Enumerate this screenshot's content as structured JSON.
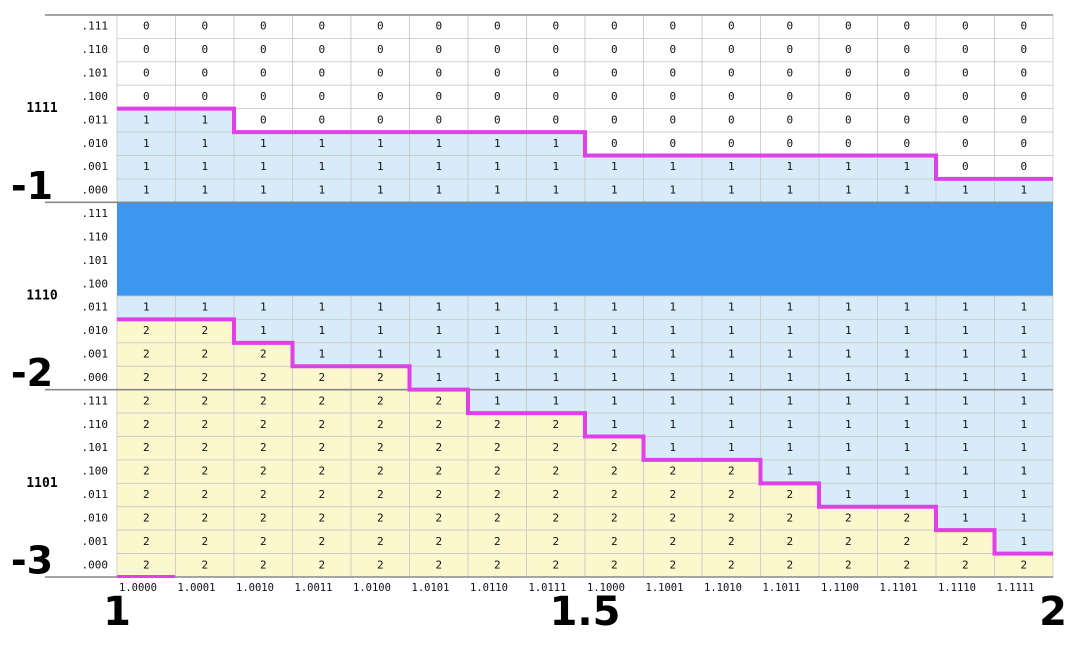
{
  "groups": [
    {
      "label": "1111",
      "quotient": "-1",
      "rows": [
        {
          "label": ".111",
          "cells": [
            "0",
            "0",
            "0",
            "0",
            "0",
            "0",
            "0",
            "0",
            "0",
            "0",
            "0",
            "0",
            "0",
            "0",
            "0",
            "0"
          ]
        },
        {
          "label": ".110",
          "cells": [
            "0",
            "0",
            "0",
            "0",
            "0",
            "0",
            "0",
            "0",
            "0",
            "0",
            "0",
            "0",
            "0",
            "0",
            "0",
            "0"
          ]
        },
        {
          "label": ".101",
          "cells": [
            "0",
            "0",
            "0",
            "0",
            "0",
            "0",
            "0",
            "0",
            "0",
            "0",
            "0",
            "0",
            "0",
            "0",
            "0",
            "0"
          ]
        },
        {
          "label": ".100",
          "cells": [
            "0",
            "0",
            "0",
            "0",
            "0",
            "0",
            "0",
            "0",
            "0",
            "0",
            "0",
            "0",
            "0",
            "0",
            "0",
            "0"
          ]
        },
        {
          "label": ".011",
          "cells": [
            "1",
            "1",
            "0",
            "0",
            "0",
            "0",
            "0",
            "0",
            "0",
            "0",
            "0",
            "0",
            "0",
            "0",
            "0",
            "0"
          ]
        },
        {
          "label": ".010",
          "cells": [
            "1",
            "1",
            "1",
            "1",
            "1",
            "1",
            "1",
            "1",
            "0",
            "0",
            "0",
            "0",
            "0",
            "0",
            "0",
            "0"
          ]
        },
        {
          "label": ".001",
          "cells": [
            "1",
            "1",
            "1",
            "1",
            "1",
            "1",
            "1",
            "1",
            "1",
            "1",
            "1",
            "1",
            "1",
            "1",
            "0",
            "0"
          ]
        },
        {
          "label": ".000",
          "cells": [
            "1",
            "1",
            "1",
            "1",
            "1",
            "1",
            "1",
            "1",
            "1",
            "1",
            "1",
            "1",
            "1",
            "1",
            "1",
            "1"
          ]
        }
      ]
    },
    {
      "label": "1110",
      "quotient": "-2",
      "rows": [
        {
          "label": ".111"
        },
        {
          "label": ".110"
        },
        {
          "label": ".101"
        },
        {
          "label": ".100"
        },
        {
          "label": ".011",
          "cells": [
            "1",
            "1",
            "1",
            "1",
            "1",
            "1",
            "1",
            "1",
            "1",
            "1",
            "1",
            "1",
            "1",
            "1",
            "1",
            "1"
          ]
        },
        {
          "label": ".010",
          "cells": [
            "2",
            "2",
            "1",
            "1",
            "1",
            "1",
            "1",
            "1",
            "1",
            "1",
            "1",
            "1",
            "1",
            "1",
            "1",
            "1"
          ]
        },
        {
          "label": ".001",
          "cells": [
            "2",
            "2",
            "2",
            "1",
            "1",
            "1",
            "1",
            "1",
            "1",
            "1",
            "1",
            "1",
            "1",
            "1",
            "1",
            "1"
          ]
        },
        {
          "label": ".000",
          "cells": [
            "2",
            "2",
            "2",
            "2",
            "2",
            "1",
            "1",
            "1",
            "1",
            "1",
            "1",
            "1",
            "1",
            "1",
            "1",
            "1"
          ]
        }
      ]
    },
    {
      "label": "1101",
      "quotient": "-3",
      "rows": [
        {
          "label": ".111",
          "cells": [
            "2",
            "2",
            "2",
            "2",
            "2",
            "2",
            "1",
            "1",
            "1",
            "1",
            "1",
            "1",
            "1",
            "1",
            "1",
            "1"
          ]
        },
        {
          "label": ".110",
          "cells": [
            "2",
            "2",
            "2",
            "2",
            "2",
            "2",
            "2",
            "2",
            "1",
            "1",
            "1",
            "1",
            "1",
            "1",
            "1",
            "1"
          ]
        },
        {
          "label": ".101",
          "cells": [
            "2",
            "2",
            "2",
            "2",
            "2",
            "2",
            "2",
            "2",
            "2",
            "1",
            "1",
            "1",
            "1",
            "1",
            "1",
            "1"
          ]
        },
        {
          "label": ".100",
          "cells": [
            "2",
            "2",
            "2",
            "2",
            "2",
            "2",
            "2",
            "2",
            "2",
            "2",
            "2",
            "1",
            "1",
            "1",
            "1",
            "1"
          ]
        },
        {
          "label": ".011",
          "cells": [
            "2",
            "2",
            "2",
            "2",
            "2",
            "2",
            "2",
            "2",
            "2",
            "2",
            "2",
            "2",
            "1",
            "1",
            "1",
            "1"
          ]
        },
        {
          "label": ".010",
          "cells": [
            "2",
            "2",
            "2",
            "2",
            "2",
            "2",
            "2",
            "2",
            "2",
            "2",
            "2",
            "2",
            "2",
            "2",
            "1",
            "1"
          ]
        },
        {
          "label": ".001",
          "cells": [
            "2",
            "2",
            "2",
            "2",
            "2",
            "2",
            "2",
            "2",
            "2",
            "2",
            "2",
            "2",
            "2",
            "2",
            "2",
            "1"
          ]
        },
        {
          "label": ".000",
          "cells": [
            "2",
            "2",
            "2",
            "2",
            "2",
            "2",
            "2",
            "2",
            "2",
            "2",
            "2",
            "2",
            "2",
            "2",
            "2",
            "2"
          ]
        }
      ]
    }
  ],
  "columns": [
    "1.0000",
    "1.0001",
    "1.0010",
    "1.0011",
    "1.0100",
    "1.0101",
    "1.0110",
    "1.0111",
    "1.1000",
    "1.1001",
    "1.1010",
    "1.1011",
    "1.1100",
    "1.1101",
    "1.1110",
    "1.1111"
  ],
  "axis_labels": [
    "1",
    "1.5",
    "2"
  ]
}
